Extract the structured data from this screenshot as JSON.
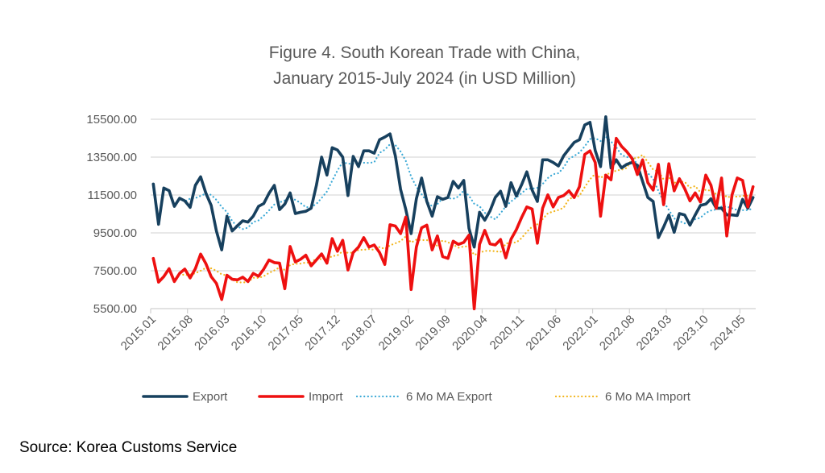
{
  "chart_data": {
    "type": "line",
    "title": [
      "Figure 4. South Korean Trade with China,",
      "January 2015-July 2024 (in USD Million)"
    ],
    "xlabel": "",
    "ylabel": "",
    "ylim": [
      5500,
      15500
    ],
    "yticks": [
      "5500.00",
      "7500.00",
      "9500.00",
      "11500.00",
      "13500.00",
      "15500.00"
    ],
    "ytick_values": [
      5500,
      7500,
      9500,
      11500,
      13500,
      15500
    ],
    "x_start": "2015.01",
    "x_end": "2024.07",
    "xtick_labels": [
      "2015.01",
      "2015.08",
      "2016.03",
      "2016.10",
      "2017.05",
      "2017.12",
      "2018.07",
      "2019.02",
      "2019.09",
      "2020.04",
      "2020.11",
      "2021.06",
      "2022.01",
      "2022.08",
      "2023.03",
      "2023.10",
      "2024.05"
    ],
    "grid": true,
    "legend_placement": "bottom",
    "series": [
      {
        "name": "Export",
        "color": "#17405E",
        "style": "solid",
        "values": [
          12080,
          9950,
          11870,
          11730,
          10900,
          11330,
          11190,
          10850,
          12010,
          12460,
          11590,
          10950,
          9600,
          8600,
          10380,
          9600,
          9880,
          10140,
          10070,
          10380,
          10900,
          11050,
          11590,
          12010,
          10730,
          11020,
          11610,
          10520,
          10590,
          10640,
          10800,
          12010,
          13500,
          12550,
          14000,
          13880,
          13500,
          11470,
          13540,
          13000,
          13830,
          13830,
          13710,
          14420,
          14560,
          14730,
          13570,
          11800,
          10730,
          9460,
          11300,
          12400,
          11160,
          10380,
          11410,
          11270,
          11370,
          12220,
          11870,
          12270,
          9740,
          8750,
          10590,
          10170,
          10660,
          11370,
          11700,
          10900,
          12150,
          11440,
          12040,
          12720,
          11760,
          11160,
          13360,
          13360,
          13220,
          13030,
          13570,
          13930,
          14280,
          14420,
          15200,
          15340,
          13850,
          13000,
          15630,
          12930,
          13360,
          12930,
          13120,
          13220,
          13070,
          12220,
          11370,
          11160,
          9250,
          9810,
          10450,
          9530,
          10520,
          10450,
          9910,
          10450,
          10950,
          11020,
          11300,
          10800,
          10800,
          10450,
          10450,
          10420,
          11270,
          10800,
          11370
        ]
      },
      {
        "name": "Import",
        "color": "#EE1010",
        "style": "solid",
        "values": [
          8150,
          6900,
          7190,
          7610,
          6930,
          7360,
          7590,
          7120,
          7610,
          8380,
          7870,
          7190,
          6830,
          5980,
          7260,
          7050,
          7020,
          7160,
          6930,
          7360,
          7210,
          7590,
          8070,
          7930,
          7900,
          6550,
          8780,
          7970,
          8110,
          8320,
          7760,
          8070,
          8390,
          7900,
          9200,
          8530,
          9110,
          7540,
          8460,
          8750,
          9250,
          8750,
          8860,
          8460,
          7830,
          9930,
          9860,
          9460,
          10340,
          6510,
          8750,
          9770,
          9910,
          8600,
          9340,
          8250,
          8150,
          9060,
          8890,
          9000,
          9380,
          5490,
          8890,
          9630,
          8920,
          8860,
          9150,
          8180,
          9170,
          9670,
          10310,
          10870,
          10760,
          8950,
          10800,
          11510,
          10870,
          11370,
          11470,
          11720,
          11370,
          11940,
          13640,
          13830,
          13220,
          10380,
          12550,
          12300,
          14490,
          14070,
          13790,
          13430,
          12580,
          13360,
          12150,
          11760,
          13120,
          10990,
          13150,
          11720,
          12360,
          11840,
          11190,
          11610,
          11130,
          12550,
          12010,
          10800,
          12400,
          9340,
          11510,
          12400,
          12270,
          10870,
          11940
        ]
      },
      {
        "name": "6 Mo MA Export",
        "color": "#3BA9D6",
        "style": "dotted",
        "moving_average_of": "Export",
        "period": 6
      },
      {
        "name": "6 Mo MA Import",
        "color": "#F2B51C",
        "style": "dotted",
        "moving_average_of": "Import",
        "period": 6
      }
    ]
  },
  "source": "Source: Korea Customs Service"
}
